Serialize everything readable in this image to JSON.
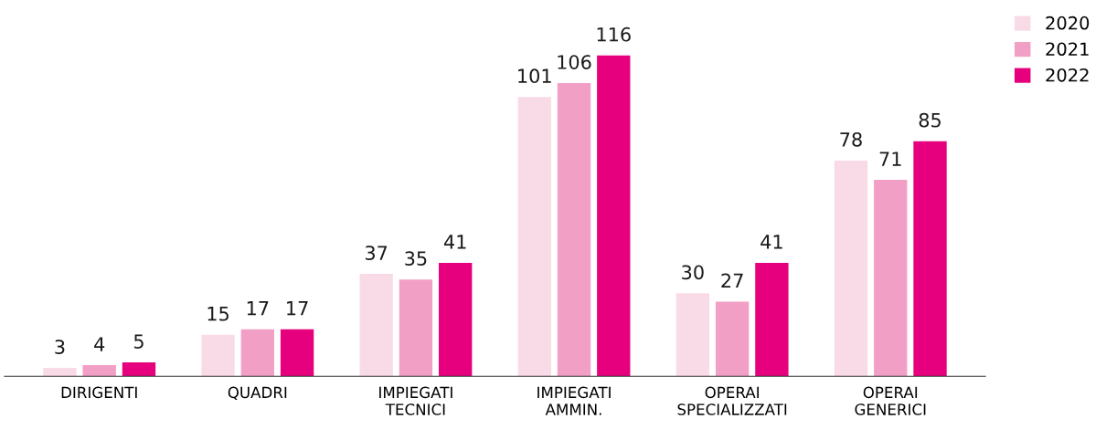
{
  "chart_data": {
    "type": "bar",
    "categories": [
      "DIRIGENTI",
      "QUADRI",
      "IMPIEGATI\nTECNICI",
      "IMPIEGATI\nAMMIN.",
      "OPERAI\nSPECIALIZZATI",
      "OPERAI\nGENERICI"
    ],
    "series": [
      {
        "name": "2020",
        "color": "#f9dbe8",
        "values": [
          3,
          15,
          37,
          101,
          30,
          78
        ]
      },
      {
        "name": "2021",
        "color": "#f29fc5",
        "values": [
          4,
          17,
          35,
          106,
          27,
          71
        ]
      },
      {
        "name": "2022",
        "color": "#e6007e",
        "values": [
          5,
          17,
          41,
          116,
          41,
          85
        ]
      }
    ],
    "data_labels": true,
    "legend": "top right",
    "grid": false
  }
}
